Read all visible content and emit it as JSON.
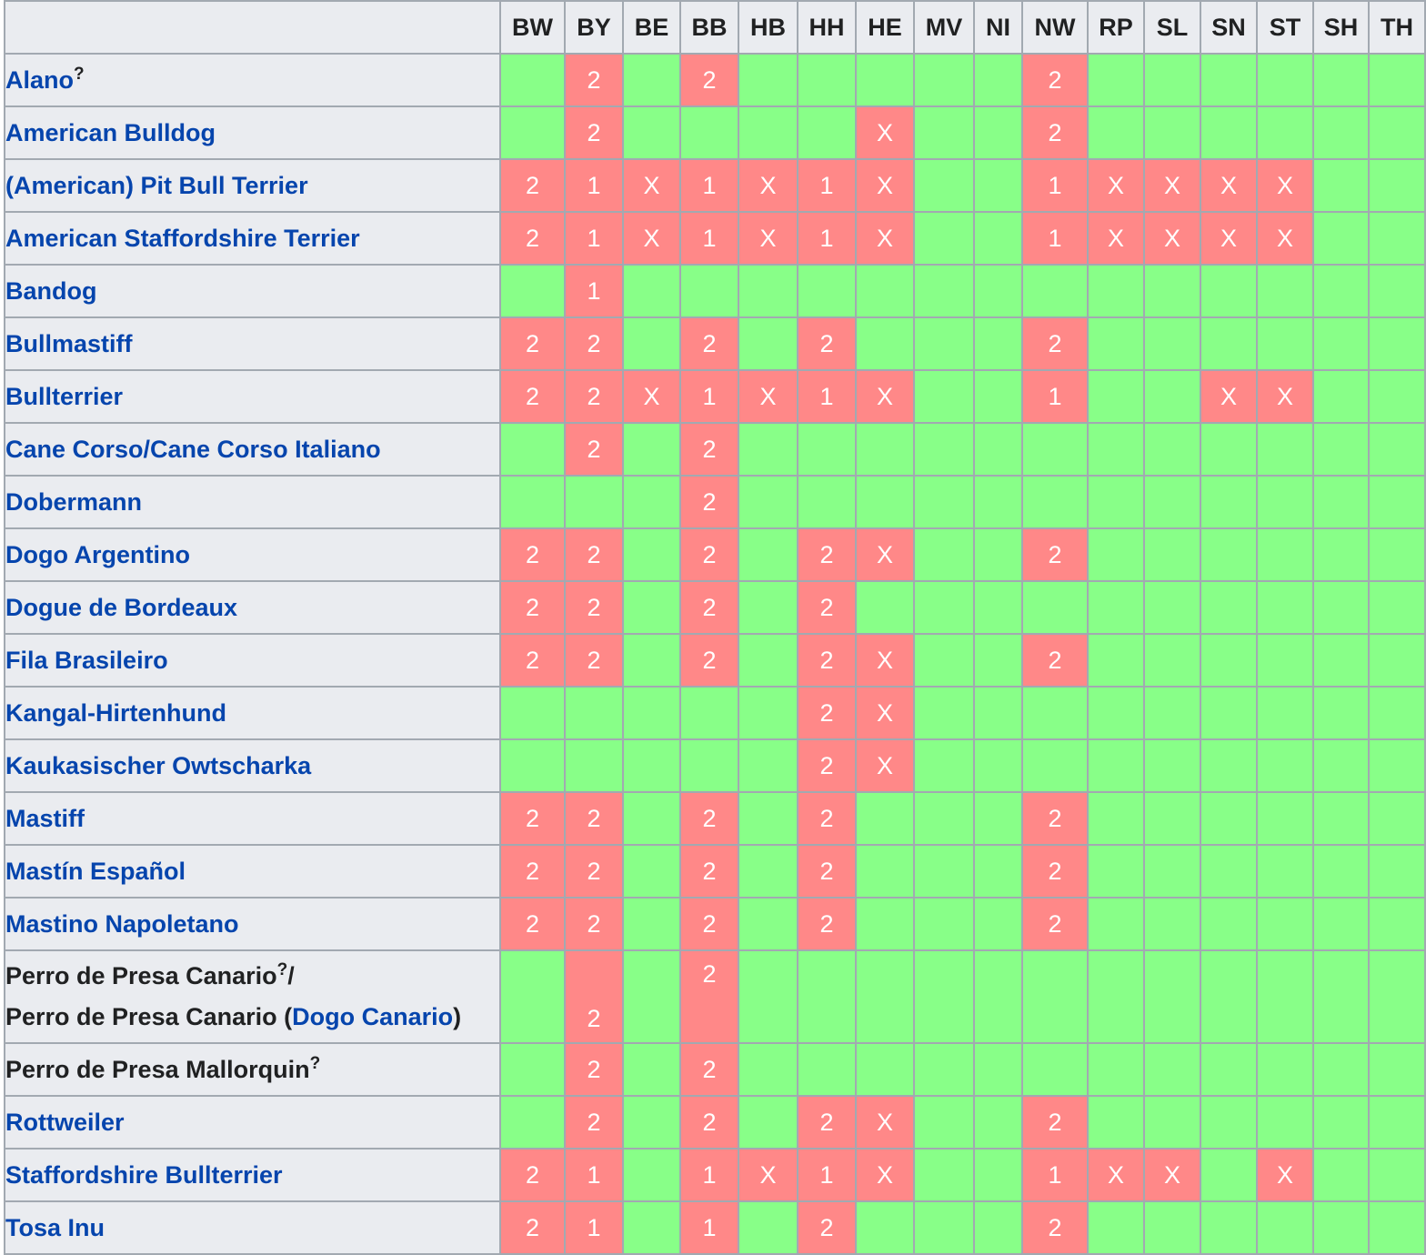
{
  "columns": [
    "BW",
    "BY",
    "BE",
    "BB",
    "HB",
    "HH",
    "HE",
    "MV",
    "NI",
    "NW",
    "RP",
    "SL",
    "SN",
    "ST",
    "SH",
    "TH"
  ],
  "colors": {
    "restricted": "#ff8888",
    "unrestricted": "#88ff88",
    "header": "#eaecf0",
    "link": "#0645ad",
    "border": "#a2a9b1"
  },
  "rows": [
    {
      "name": "Alano",
      "sup": "?",
      "link": true,
      "values": [
        "",
        "2",
        "",
        "2",
        "",
        "",
        "",
        "",
        "",
        "2",
        "",
        "",
        "",
        "",
        "",
        ""
      ]
    },
    {
      "name": "American Bulldog",
      "link": true,
      "values": [
        "",
        "2",
        "",
        "",
        "",
        "",
        "X",
        "",
        "",
        "2",
        "",
        "",
        "",
        "",
        "",
        ""
      ]
    },
    {
      "name": "(American) Pit Bull Terrier",
      "link": true,
      "values": [
        "2",
        "1",
        "X",
        "1",
        "X",
        "1",
        "X",
        "",
        "",
        "1",
        "X",
        "X",
        "X",
        "X",
        "",
        ""
      ]
    },
    {
      "name": "American Staffordshire Terrier",
      "link": true,
      "values": [
        "2",
        "1",
        "X",
        "1",
        "X",
        "1",
        "X",
        "",
        "",
        "1",
        "X",
        "X",
        "X",
        "X",
        "",
        ""
      ]
    },
    {
      "name": "Bandog",
      "link": true,
      "values": [
        "",
        "1",
        "",
        "",
        "",
        "",
        "",
        "",
        "",
        "",
        "",
        "",
        "",
        "",
        "",
        ""
      ]
    },
    {
      "name": "Bullmastiff",
      "link": true,
      "values": [
        "2",
        "2",
        "",
        "2",
        "",
        "2",
        "",
        "",
        "",
        "2",
        "",
        "",
        "",
        "",
        "",
        ""
      ]
    },
    {
      "name": "Bullterrier",
      "link": true,
      "values": [
        "2",
        "2",
        "X",
        "1",
        "X",
        "1",
        "X",
        "",
        "",
        "1",
        "",
        "",
        "X",
        "X",
        "",
        ""
      ]
    },
    {
      "name": "Cane Corso/Cane Corso Italiano",
      "link": true,
      "values": [
        "",
        "2",
        "",
        "2",
        "",
        "",
        "",
        "",
        "",
        "",
        "",
        "",
        "",
        "",
        "",
        ""
      ]
    },
    {
      "name": "Dobermann",
      "link": true,
      "values": [
        "",
        "",
        "",
        "2",
        "",
        "",
        "",
        "",
        "",
        "",
        "",
        "",
        "",
        "",
        "",
        ""
      ]
    },
    {
      "name": "Dogo Argentino",
      "link": true,
      "values": [
        "2",
        "2",
        "",
        "2",
        "",
        "2",
        "X",
        "",
        "",
        "2",
        "",
        "",
        "",
        "",
        "",
        ""
      ]
    },
    {
      "name": "Dogue de Bordeaux",
      "link": true,
      "values": [
        "2",
        "2",
        "",
        "2",
        "",
        "2",
        "",
        "",
        "",
        "",
        "",
        "",
        "",
        "",
        "",
        ""
      ]
    },
    {
      "name": "Fila Brasileiro",
      "link": true,
      "values": [
        "2",
        "2",
        "",
        "2",
        "",
        "2",
        "X",
        "",
        "",
        "2",
        "",
        "",
        "",
        "",
        "",
        ""
      ]
    },
    {
      "name": "Kangal-Hirtenhund",
      "link": true,
      "values": [
        "",
        "",
        "",
        "",
        "",
        "2",
        "X",
        "",
        "",
        "",
        "",
        "",
        "",
        "",
        "",
        ""
      ]
    },
    {
      "name": "Kaukasischer Owtscharka",
      "link": true,
      "values": [
        "",
        "",
        "",
        "",
        "",
        "2",
        "X",
        "",
        "",
        "",
        "",
        "",
        "",
        "",
        "",
        ""
      ]
    },
    {
      "name": "Mastiff",
      "link": true,
      "values": [
        "2",
        "2",
        "",
        "2",
        "",
        "2",
        "",
        "",
        "",
        "2",
        "",
        "",
        "",
        "",
        "",
        ""
      ]
    },
    {
      "name": "Mastín Español",
      "link": true,
      "values": [
        "2",
        "2",
        "",
        "2",
        "",
        "2",
        "",
        "",
        "",
        "2",
        "",
        "",
        "",
        "",
        "",
        ""
      ]
    },
    {
      "name": "Mastino Napoletano",
      "link": true,
      "values": [
        "2",
        "2",
        "",
        "2",
        "",
        "2",
        "",
        "",
        "",
        "2",
        "",
        "",
        "",
        "",
        "",
        ""
      ]
    },
    {
      "name_line1": "Perro de Presa Canario",
      "sup": "?",
      "slash": "/",
      "name_line2_prefix": "Perro de Presa Canario (",
      "name_line2_link": "Dogo Canario",
      "name_line2_suffix": ")",
      "tall": true,
      "values": [
        "",
        "2",
        "",
        "2",
        "",
        "",
        "",
        "",
        "",
        "",
        "",
        "",
        "",
        "",
        "",
        ""
      ],
      "value_pos": {
        "BY": "bottom",
        "BB": "top"
      }
    },
    {
      "name": "Perro de Presa Mallorquin",
      "sup": "?",
      "link": false,
      "values": [
        "",
        "2",
        "",
        "2",
        "",
        "",
        "",
        "",
        "",
        "",
        "",
        "",
        "",
        "",
        "",
        ""
      ]
    },
    {
      "name": "Rottweiler",
      "link": true,
      "values": [
        "",
        "2",
        "",
        "2",
        "",
        "2",
        "X",
        "",
        "",
        "2",
        "",
        "",
        "",
        "",
        "",
        ""
      ]
    },
    {
      "name": "Staffordshire Bullterrier",
      "link": true,
      "values": [
        "2",
        "1",
        "",
        "1",
        "X",
        "1",
        "X",
        "",
        "",
        "1",
        "X",
        "X",
        "",
        "X",
        "",
        ""
      ]
    },
    {
      "name": "Tosa Inu",
      "link": true,
      "values": [
        "2",
        "1",
        "",
        "1",
        "",
        "2",
        "",
        "",
        "",
        "2",
        "",
        "",
        "",
        "",
        "",
        ""
      ]
    }
  ]
}
